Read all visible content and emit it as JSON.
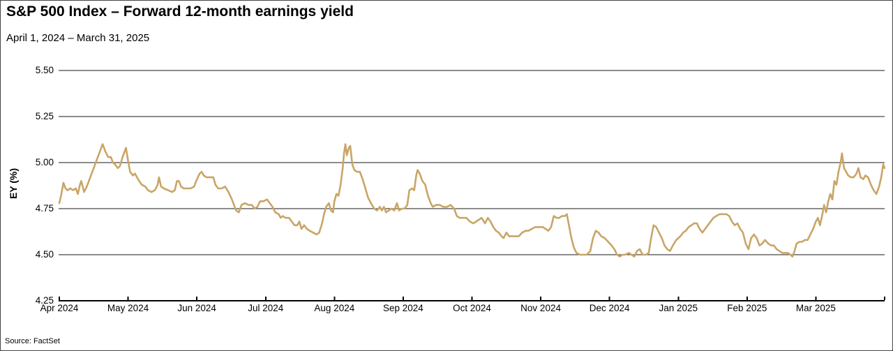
{
  "title": "S&P 500 Index – Forward 12-month earnings yield",
  "subtitle": "April 1, 2024 – March 31, 2025",
  "source": "Source: FactSet",
  "chart_data": {
    "type": "line",
    "title": "S&P 500 Index – Forward 12-month earnings yield",
    "subtitle": "April 1, 2024 – March 31, 2025",
    "xlabel": "",
    "ylabel": "EY (%)",
    "ylim": [
      4.25,
      5.5
    ],
    "ytick_labels": [
      "5.50",
      "5.25",
      "5.00",
      "4.75",
      "4.50",
      "4.25"
    ],
    "ytick_values": [
      5.5,
      5.25,
      5.0,
      4.75,
      4.5,
      4.25
    ],
    "x_tick_labels": [
      "Apr 2024",
      "May 2024",
      "Jun 2024",
      "Jul 2024",
      "Aug 2024",
      "Sep 2024",
      "Oct 2024",
      "Nov 2024",
      "Dec 2024",
      "Jan 2025",
      "Feb 2025",
      "Mar 2025"
    ],
    "grid": true,
    "legend": "none",
    "line_color": "#C9A566",
    "axis_color": "#000000",
    "grid_color": "#1a1a1a",
    "series": [
      {
        "name": "S&P 500 forward 12-month earnings yield (%)",
        "x_unit": "months since Apr 1, 2024 (0 = Apr 2024 tick, 12 = end Mar 2025)",
        "points": [
          [
            0,
            4.78
          ],
          [
            0.03,
            4.83
          ],
          [
            0.06,
            4.89
          ],
          [
            0.09,
            4.86
          ],
          [
            0.12,
            4.85
          ],
          [
            0.16,
            4.86
          ],
          [
            0.2,
            4.85
          ],
          [
            0.24,
            4.86
          ],
          [
            0.27,
            4.83
          ],
          [
            0.3,
            4.88
          ],
          [
            0.32,
            4.9
          ],
          [
            0.36,
            4.84
          ],
          [
            0.4,
            4.87
          ],
          [
            0.45,
            4.92
          ],
          [
            0.5,
            4.97
          ],
          [
            0.55,
            5.02
          ],
          [
            0.59,
            5.06
          ],
          [
            0.63,
            5.1
          ],
          [
            0.67,
            5.06
          ],
          [
            0.71,
            5.03
          ],
          [
            0.75,
            5.03
          ],
          [
            0.78,
            5.0
          ],
          [
            0.81,
            4.99
          ],
          [
            0.85,
            4.97
          ],
          [
            0.88,
            4.98
          ],
          [
            0.92,
            5.03
          ],
          [
            0.96,
            5.07
          ],
          [
            0.97,
            5.08
          ],
          [
            1.0,
            5.01
          ],
          [
            1.03,
            4.95
          ],
          [
            1.07,
            4.93
          ],
          [
            1.1,
            4.94
          ],
          [
            1.16,
            4.9
          ],
          [
            1.2,
            4.88
          ],
          [
            1.25,
            4.87
          ],
          [
            1.29,
            4.85
          ],
          [
            1.34,
            4.84
          ],
          [
            1.39,
            4.85
          ],
          [
            1.43,
            4.88
          ],
          [
            1.45,
            4.92
          ],
          [
            1.48,
            4.87
          ],
          [
            1.52,
            4.86
          ],
          [
            1.58,
            4.85
          ],
          [
            1.64,
            4.84
          ],
          [
            1.68,
            4.85
          ],
          [
            1.71,
            4.9
          ],
          [
            1.74,
            4.9
          ],
          [
            1.77,
            4.87
          ],
          [
            1.81,
            4.86
          ],
          [
            1.86,
            4.86
          ],
          [
            1.91,
            4.86
          ],
          [
            1.96,
            4.87
          ],
          [
            1.99,
            4.9
          ],
          [
            2.04,
            4.94
          ],
          [
            2.07,
            4.95
          ],
          [
            2.1,
            4.93
          ],
          [
            2.14,
            4.92
          ],
          [
            2.19,
            4.92
          ],
          [
            2.24,
            4.92
          ],
          [
            2.27,
            4.88
          ],
          [
            2.31,
            4.86
          ],
          [
            2.36,
            4.86
          ],
          [
            2.41,
            4.87
          ],
          [
            2.46,
            4.84
          ],
          [
            2.51,
            4.8
          ],
          [
            2.54,
            4.77
          ],
          [
            2.57,
            4.74
          ],
          [
            2.61,
            4.73
          ],
          [
            2.65,
            4.77
          ],
          [
            2.7,
            4.78
          ],
          [
            2.75,
            4.77
          ],
          [
            2.8,
            4.77
          ],
          [
            2.84,
            4.75
          ],
          [
            2.88,
            4.76
          ],
          [
            2.92,
            4.79
          ],
          [
            2.97,
            4.79
          ],
          [
            3.02,
            4.8
          ],
          [
            3.06,
            4.78
          ],
          [
            3.1,
            4.76
          ],
          [
            3.14,
            4.73
          ],
          [
            3.19,
            4.72
          ],
          [
            3.22,
            4.7
          ],
          [
            3.25,
            4.71
          ],
          [
            3.29,
            4.7
          ],
          [
            3.34,
            4.7
          ],
          [
            3.38,
            4.68
          ],
          [
            3.42,
            4.66
          ],
          [
            3.46,
            4.66
          ],
          [
            3.49,
            4.68
          ],
          [
            3.52,
            4.64
          ],
          [
            3.56,
            4.66
          ],
          [
            3.6,
            4.64
          ],
          [
            3.64,
            4.63
          ],
          [
            3.69,
            4.62
          ],
          [
            3.74,
            4.61
          ],
          [
            3.78,
            4.62
          ],
          [
            3.82,
            4.67
          ],
          [
            3.85,
            4.72
          ],
          [
            3.88,
            4.76
          ],
          [
            3.92,
            4.78
          ],
          [
            3.95,
            4.74
          ],
          [
            3.98,
            4.73
          ],
          [
            4.0,
            4.79
          ],
          [
            4.03,
            4.83
          ],
          [
            4.06,
            4.82
          ],
          [
            4.09,
            4.88
          ],
          [
            4.12,
            4.97
          ],
          [
            4.14,
            5.05
          ],
          [
            4.16,
            5.1
          ],
          [
            4.18,
            5.04
          ],
          [
            4.21,
            5.08
          ],
          [
            4.23,
            5.09
          ],
          [
            4.26,
            4.99
          ],
          [
            4.29,
            4.96
          ],
          [
            4.33,
            4.95
          ],
          [
            4.37,
            4.95
          ],
          [
            4.41,
            4.91
          ],
          [
            4.45,
            4.86
          ],
          [
            4.49,
            4.81
          ],
          [
            4.53,
            4.78
          ],
          [
            4.58,
            4.75
          ],
          [
            4.62,
            4.74
          ],
          [
            4.66,
            4.76
          ],
          [
            4.69,
            4.74
          ],
          [
            4.72,
            4.76
          ],
          [
            4.75,
            4.73
          ],
          [
            4.79,
            4.74
          ],
          [
            4.83,
            4.75
          ],
          [
            4.87,
            4.74
          ],
          [
            4.91,
            4.78
          ],
          [
            4.94,
            4.74
          ],
          [
            4.98,
            4.75
          ],
          [
            5.02,
            4.75
          ],
          [
            5.06,
            4.77
          ],
          [
            5.09,
            4.85
          ],
          [
            5.13,
            4.86
          ],
          [
            5.16,
            4.85
          ],
          [
            5.19,
            4.93
          ],
          [
            5.21,
            4.96
          ],
          [
            5.24,
            4.94
          ],
          [
            5.28,
            4.9
          ],
          [
            5.32,
            4.88
          ],
          [
            5.36,
            4.82
          ],
          [
            5.4,
            4.78
          ],
          [
            5.43,
            4.76
          ],
          [
            5.48,
            4.77
          ],
          [
            5.53,
            4.77
          ],
          [
            5.58,
            4.76
          ],
          [
            5.64,
            4.76
          ],
          [
            5.69,
            4.77
          ],
          [
            5.74,
            4.75
          ],
          [
            5.78,
            4.71
          ],
          [
            5.82,
            4.7
          ],
          [
            5.87,
            4.7
          ],
          [
            5.92,
            4.7
          ],
          [
            5.97,
            4.68
          ],
          [
            6.02,
            4.67
          ],
          [
            6.06,
            4.68
          ],
          [
            6.1,
            4.69
          ],
          [
            6.14,
            4.7
          ],
          [
            6.19,
            4.67
          ],
          [
            6.23,
            4.7
          ],
          [
            6.27,
            4.68
          ],
          [
            6.31,
            4.65
          ],
          [
            6.35,
            4.63
          ],
          [
            6.39,
            4.62
          ],
          [
            6.43,
            4.6
          ],
          [
            6.46,
            4.59
          ],
          [
            6.5,
            4.62
          ],
          [
            6.54,
            4.6
          ],
          [
            6.58,
            4.6
          ],
          [
            6.63,
            4.6
          ],
          [
            6.68,
            4.6
          ],
          [
            6.73,
            4.62
          ],
          [
            6.78,
            4.63
          ],
          [
            6.82,
            4.63
          ],
          [
            6.87,
            4.64
          ],
          [
            6.92,
            4.65
          ],
          [
            6.97,
            4.65
          ],
          [
            7.03,
            4.65
          ],
          [
            7.07,
            4.64
          ],
          [
            7.11,
            4.63
          ],
          [
            7.15,
            4.65
          ],
          [
            7.19,
            4.71
          ],
          [
            7.23,
            4.7
          ],
          [
            7.27,
            4.7
          ],
          [
            7.31,
            4.71
          ],
          [
            7.35,
            4.71
          ],
          [
            7.38,
            4.72
          ],
          [
            7.41,
            4.66
          ],
          [
            7.44,
            4.6
          ],
          [
            7.48,
            4.54
          ],
          [
            7.52,
            4.51
          ],
          [
            7.57,
            4.5
          ],
          [
            7.62,
            4.5
          ],
          [
            7.67,
            4.5
          ],
          [
            7.72,
            4.52
          ],
          [
            7.76,
            4.59
          ],
          [
            7.8,
            4.63
          ],
          [
            7.84,
            4.62
          ],
          [
            7.88,
            4.6
          ],
          [
            7.93,
            4.59
          ],
          [
            7.98,
            4.57
          ],
          [
            8.03,
            4.55
          ],
          [
            8.07,
            4.53
          ],
          [
            8.11,
            4.5
          ],
          [
            8.15,
            4.49
          ],
          [
            8.19,
            4.5
          ],
          [
            8.23,
            4.5
          ],
          [
            8.28,
            4.51
          ],
          [
            8.32,
            4.5
          ],
          [
            8.36,
            4.49
          ],
          [
            8.4,
            4.52
          ],
          [
            8.44,
            4.53
          ],
          [
            8.48,
            4.5
          ],
          [
            8.53,
            4.5
          ],
          [
            8.57,
            4.51
          ],
          [
            8.6,
            4.58
          ],
          [
            8.64,
            4.66
          ],
          [
            8.68,
            4.65
          ],
          [
            8.72,
            4.62
          ],
          [
            8.76,
            4.59
          ],
          [
            8.8,
            4.55
          ],
          [
            8.84,
            4.53
          ],
          [
            8.88,
            4.52
          ],
          [
            8.92,
            4.55
          ],
          [
            8.97,
            4.58
          ],
          [
            9.03,
            4.6
          ],
          [
            9.07,
            4.62
          ],
          [
            9.11,
            4.63
          ],
          [
            9.15,
            4.65
          ],
          [
            9.19,
            4.66
          ],
          [
            9.23,
            4.67
          ],
          [
            9.27,
            4.67
          ],
          [
            9.31,
            4.64
          ],
          [
            9.35,
            4.62
          ],
          [
            9.39,
            4.64
          ],
          [
            9.43,
            4.66
          ],
          [
            9.47,
            4.68
          ],
          [
            9.51,
            4.7
          ],
          [
            9.55,
            4.71
          ],
          [
            9.6,
            4.72
          ],
          [
            9.65,
            4.72
          ],
          [
            9.7,
            4.72
          ],
          [
            9.74,
            4.71
          ],
          [
            9.78,
            4.68
          ],
          [
            9.82,
            4.66
          ],
          [
            9.86,
            4.67
          ],
          [
            9.9,
            4.64
          ],
          [
            9.94,
            4.62
          ],
          [
            9.98,
            4.56
          ],
          [
            10.02,
            4.53
          ],
          [
            10.06,
            4.59
          ],
          [
            10.1,
            4.61
          ],
          [
            10.14,
            4.59
          ],
          [
            10.18,
            4.55
          ],
          [
            10.22,
            4.56
          ],
          [
            10.26,
            4.58
          ],
          [
            10.31,
            4.56
          ],
          [
            10.35,
            4.55
          ],
          [
            10.39,
            4.55
          ],
          [
            10.43,
            4.53
          ],
          [
            10.47,
            4.52
          ],
          [
            10.51,
            4.51
          ],
          [
            10.55,
            4.51
          ],
          [
            10.59,
            4.51
          ],
          [
            10.63,
            4.5
          ],
          [
            10.66,
            4.49
          ],
          [
            10.69,
            4.52
          ],
          [
            10.72,
            4.56
          ],
          [
            10.76,
            4.57
          ],
          [
            10.8,
            4.57
          ],
          [
            10.84,
            4.58
          ],
          [
            10.88,
            4.58
          ],
          [
            10.92,
            4.61
          ],
          [
            10.96,
            4.64
          ],
          [
            11.0,
            4.68
          ],
          [
            11.03,
            4.7
          ],
          [
            11.06,
            4.66
          ],
          [
            11.09,
            4.71
          ],
          [
            11.12,
            4.77
          ],
          [
            11.15,
            4.73
          ],
          [
            11.18,
            4.79
          ],
          [
            11.21,
            4.83
          ],
          [
            11.24,
            4.8
          ],
          [
            11.27,
            4.9
          ],
          [
            11.3,
            4.88
          ],
          [
            11.33,
            4.95
          ],
          [
            11.36,
            5.0
          ],
          [
            11.38,
            5.05
          ],
          [
            11.41,
            4.97
          ],
          [
            11.44,
            4.95
          ],
          [
            11.47,
            4.93
          ],
          [
            11.51,
            4.92
          ],
          [
            11.55,
            4.92
          ],
          [
            11.59,
            4.94
          ],
          [
            11.62,
            4.97
          ],
          [
            11.65,
            4.92
          ],
          [
            11.69,
            4.91
          ],
          [
            11.72,
            4.93
          ],
          [
            11.76,
            4.92
          ],
          [
            11.8,
            4.88
          ],
          [
            11.84,
            4.85
          ],
          [
            11.88,
            4.83
          ],
          [
            11.92,
            4.87
          ],
          [
            11.95,
            4.92
          ],
          [
            11.98,
            4.99
          ],
          [
            12.0,
            4.97
          ]
        ]
      }
    ]
  }
}
